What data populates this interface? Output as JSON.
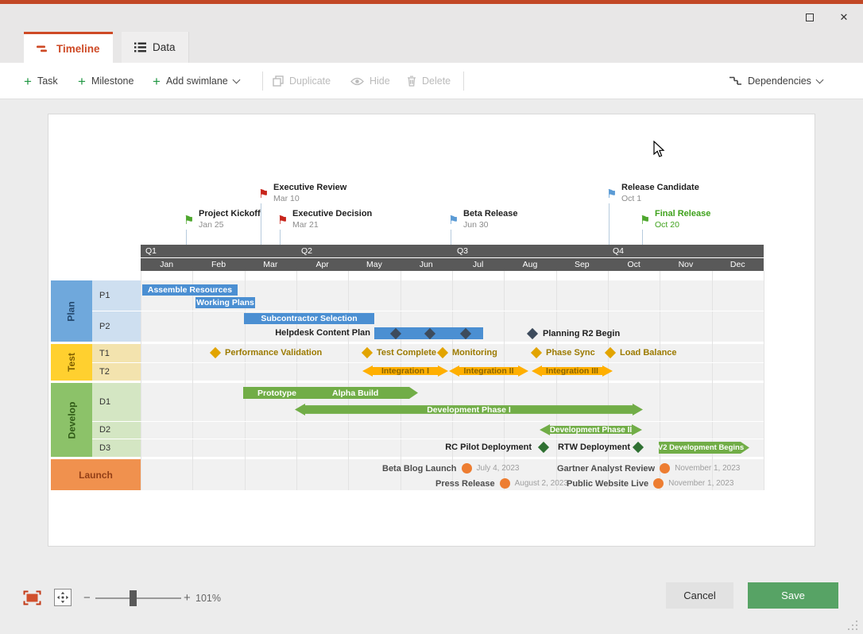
{
  "tabs": {
    "timeline": "Timeline",
    "data": "Data"
  },
  "toolbar": {
    "task": "Task",
    "milestone": "Milestone",
    "add_swimlane": "Add swimlane",
    "duplicate": "Duplicate",
    "hide": "Hide",
    "delete": "Delete",
    "dependencies": "Dependencies"
  },
  "icons": {
    "flag": "⚑",
    "close": "✕"
  },
  "chart": {
    "milestones": [
      {
        "name": "Project Kickoff",
        "date": "Jan 25",
        "flag": "green"
      },
      {
        "name": "Executive Review",
        "date": "Mar 10",
        "flag": "red"
      },
      {
        "name": "Executive Decision",
        "date": "Mar 21",
        "flag": "red"
      },
      {
        "name": "Beta Release",
        "date": "Jun 30",
        "flag": "blue"
      },
      {
        "name": "Release Candidate",
        "date": "Oct 1",
        "flag": "blue"
      },
      {
        "name": "Final Release",
        "date": "Oct 20",
        "flag": "green"
      }
    ],
    "quarters": [
      "Q1",
      "Q2",
      "Q3",
      "Q4"
    ],
    "months": [
      "Jan",
      "Feb",
      "Mar",
      "Apr",
      "May",
      "Jun",
      "Jul",
      "Aug",
      "Sep",
      "Oct",
      "Nov",
      "Dec"
    ],
    "lanes": {
      "plan": {
        "label": "Plan",
        "sublanes": [
          "P1",
          "P2"
        ]
      },
      "test": {
        "label": "Test",
        "sublanes": [
          "T1",
          "T2"
        ]
      },
      "develop": {
        "label": "Develop",
        "sublanes": [
          "D1",
          "D2",
          "D3"
        ]
      },
      "launch": {
        "label": "Launch",
        "sublanes": []
      }
    },
    "tasks": {
      "assemble_resources": "Assemble Resources",
      "working_plans": "Working Plans",
      "subcontractor_selection": "Subcontractor Selection",
      "helpdesk_content_plan": "Helpdesk Content Plan",
      "planning_r2_begin": "Planning R2 Begin",
      "performance_validation": "Performance Validation",
      "test_complete": "Test Complete",
      "monitoring": "Monitoring",
      "phase_sync": "Phase Sync",
      "load_balance": "Load Balance",
      "integration_1": "Integration I",
      "integration_2": "Integration II",
      "integration_3": "Integration III",
      "prototype": "Prototype",
      "alpha_build": "Alpha Build",
      "dev_phase_1": "Development Phase I",
      "dev_phase_2": "Development Phase II",
      "rc_pilot_deployment": "RC Pilot Deployment",
      "rtw_deployment": "RTW Deployment",
      "v2_dev_begins": "V2 Development Begins",
      "beta_blog_launch": "Beta Blog Launch",
      "beta_blog_date": "July 4, 2023",
      "press_release": "Press Release",
      "press_release_date": "August 2, 2023",
      "gartner_review": "Gartner Analyst Review",
      "gartner_date": "November 1, 2023",
      "public_website": "Public Website Live",
      "public_website_date": "November 1, 2023"
    }
  },
  "footer": {
    "zoom_level": "101%",
    "cancel": "Cancel",
    "save": "Save"
  },
  "colors": {
    "accent_red": "#C24826",
    "active_tab_red": "#CE4A26",
    "band_gray": "#595959",
    "bar_blue": "#4B8FD2",
    "bar_gold": "#FFAF00",
    "bar_green": "#71AD47",
    "lane_plan": "#6FA8DC",
    "lane_test": "#FFD02F",
    "lane_develop": "#8CC269",
    "lane_launch": "#F0914E",
    "launch_dot_orange": "#ED7D31",
    "save_green": "#57A365"
  }
}
